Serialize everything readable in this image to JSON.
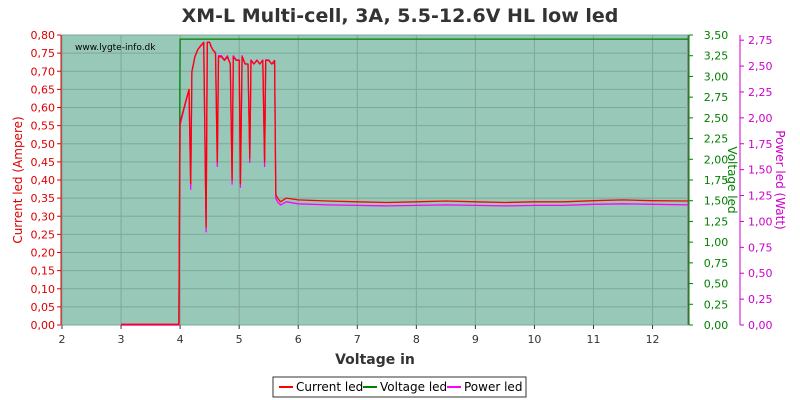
{
  "chart_data": {
    "type": "line",
    "title": "XM-L Multi-cell, 3A, 5.5-12.6V HL low led",
    "watermark": "www.lygte-info.dk",
    "xlabel": "Voltage in",
    "ylabel_left": "Current led (Ampere)",
    "ylabel_right1": "Voltage led",
    "ylabel_right2": "Power led (Watt)",
    "xlim": [
      2,
      12.6
    ],
    "ylim_left": [
      0,
      0.8
    ],
    "ylim_right1": [
      0,
      3.5
    ],
    "ylim_right2": [
      0,
      2.8
    ],
    "x_ticks": [
      "2",
      "3",
      "4",
      "5",
      "6",
      "7",
      "8",
      "9",
      "10",
      "11",
      "12"
    ],
    "y_left_ticks": [
      "0,00",
      "0,05",
      "0,10",
      "0,15",
      "0,20",
      "0,25",
      "0,30",
      "0,35",
      "0,40",
      "0,45",
      "0,50",
      "0,55",
      "0,60",
      "0,65",
      "0,70",
      "0,75",
      "0,80"
    ],
    "y_right1_ticks": [
      "0,00",
      "0,25",
      "0,50",
      "0,75",
      "1,00",
      "1,25",
      "1,50",
      "1,75",
      "2,00",
      "2,25",
      "2,50",
      "2,75",
      "3,00",
      "3,25",
      "3,50"
    ],
    "y_right2_ticks": [
      "0,00",
      "0,25",
      "0,50",
      "0,75",
      "1,00",
      "1,25",
      "1,50",
      "1,75",
      "2,00",
      "2,25",
      "2,50",
      "2,75"
    ],
    "grid": true,
    "legend_position": "bottom-center",
    "colors": {
      "background": "#98c8b8",
      "current": "#ff0000",
      "voltage": "#008000",
      "power": "#ff00ff",
      "left_axis": "#dd0000",
      "right1_axis": "#008000",
      "right2_axis": "#cc00cc"
    },
    "series": [
      {
        "name": "Current led",
        "axis": "left",
        "x": [
          3.0,
          3.98,
          4.0,
          4.05,
          4.1,
          4.15,
          4.18,
          4.2,
          4.25,
          4.3,
          4.35,
          4.4,
          4.44,
          4.46,
          4.5,
          4.52,
          4.55,
          4.6,
          4.63,
          4.65,
          4.7,
          4.75,
          4.8,
          4.85,
          4.88,
          4.9,
          4.95,
          5.0,
          5.02,
          5.05,
          5.1,
          5.15,
          5.18,
          5.2,
          5.25,
          5.3,
          5.35,
          5.4,
          5.43,
          5.45,
          5.5,
          5.55,
          5.6,
          5.62,
          5.65,
          5.7,
          5.8,
          6.0,
          6.5,
          7.0,
          7.5,
          8.0,
          8.5,
          9.0,
          9.5,
          10.0,
          10.5,
          11.0,
          11.5,
          12.0,
          12.6
        ],
        "values": [
          0.002,
          0.002,
          0.56,
          0.59,
          0.62,
          0.65,
          0.39,
          0.7,
          0.74,
          0.76,
          0.77,
          0.78,
          0.27,
          0.78,
          0.78,
          0.77,
          0.76,
          0.75,
          0.45,
          0.74,
          0.74,
          0.73,
          0.74,
          0.72,
          0.4,
          0.74,
          0.73,
          0.73,
          0.39,
          0.74,
          0.72,
          0.72,
          0.46,
          0.73,
          0.72,
          0.73,
          0.72,
          0.73,
          0.45,
          0.73,
          0.73,
          0.72,
          0.73,
          0.36,
          0.35,
          0.34,
          0.35,
          0.345,
          0.342,
          0.34,
          0.338,
          0.34,
          0.342,
          0.34,
          0.338,
          0.34,
          0.34,
          0.343,
          0.345,
          0.343,
          0.342
        ]
      },
      {
        "name": "Voltage led",
        "axis": "right1",
        "x": [
          3.0,
          3.98,
          4.0,
          12.6
        ],
        "values": [
          0.0,
          0.0,
          3.45,
          3.45
        ]
      },
      {
        "name": "Power led",
        "axis": "right2",
        "x": [
          3.0,
          3.98,
          4.0,
          4.05,
          4.1,
          4.15,
          4.18,
          4.2,
          4.25,
          4.3,
          4.35,
          4.4,
          4.44,
          4.46,
          4.5,
          4.52,
          4.55,
          4.6,
          4.63,
          4.65,
          4.7,
          4.75,
          4.8,
          4.85,
          4.88,
          4.9,
          4.95,
          5.0,
          5.02,
          5.05,
          5.1,
          5.15,
          5.18,
          5.2,
          5.25,
          5.3,
          5.35,
          5.4,
          5.43,
          5.45,
          5.5,
          5.55,
          5.6,
          5.62,
          5.65,
          5.7,
          5.8,
          6.0,
          6.5,
          7.0,
          7.5,
          8.0,
          8.5,
          9.0,
          9.5,
          10.0,
          10.5,
          11.0,
          11.5,
          12.0,
          12.6
        ],
        "values": [
          0.0,
          0.0,
          1.93,
          2.05,
          2.16,
          2.27,
          1.31,
          2.44,
          2.59,
          2.66,
          2.7,
          2.73,
          0.9,
          2.73,
          2.73,
          2.7,
          2.66,
          2.63,
          1.53,
          2.6,
          2.6,
          2.56,
          2.6,
          2.52,
          1.36,
          2.6,
          2.56,
          2.56,
          1.33,
          2.6,
          2.52,
          2.52,
          1.57,
          2.56,
          2.52,
          2.56,
          2.52,
          2.56,
          1.53,
          2.56,
          2.56,
          2.52,
          2.53,
          1.22,
          1.19,
          1.16,
          1.19,
          1.17,
          1.16,
          1.155,
          1.15,
          1.155,
          1.16,
          1.155,
          1.15,
          1.155,
          1.155,
          1.165,
          1.17,
          1.165,
          1.16
        ]
      }
    ]
  }
}
